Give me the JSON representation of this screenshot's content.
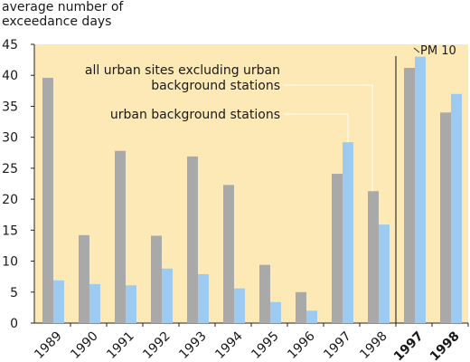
{
  "chart_data": {
    "type": "bar",
    "title": "",
    "ylabel": "average number of exceedance days",
    "xlabel": "",
    "ylim": [
      0,
      45
    ],
    "yticks": [
      0,
      5,
      10,
      15,
      20,
      25,
      30,
      35,
      40,
      45
    ],
    "categories": [
      "1989",
      "1990",
      "1991",
      "1992",
      "1993",
      "1994",
      "1995",
      "1996",
      "1997",
      "1998",
      "1997",
      "1998"
    ],
    "bold_categories": [
      10,
      11
    ],
    "panel_label": "PM 10",
    "series": [
      {
        "name": "all urban sites excluding urban background stations",
        "color": "#a9a9a9",
        "values": [
          39.6,
          14.2,
          27.8,
          14.1,
          26.9,
          22.3,
          9.4,
          5.0,
          24.1,
          21.3,
          41.2,
          34.0
        ]
      },
      {
        "name": "urban background stations",
        "color": "#9ccaf0",
        "values": [
          6.9,
          6.3,
          6.1,
          8.8,
          7.9,
          5.6,
          3.4,
          2.0,
          29.2,
          15.9,
          43.0,
          37.0
        ]
      }
    ],
    "annotations": [
      {
        "text": "all urban sites excluding urban",
        "text2": "background stations"
      },
      {
        "text": "urban background stations"
      }
    ],
    "background": "#fde9b6",
    "grid": false
  }
}
